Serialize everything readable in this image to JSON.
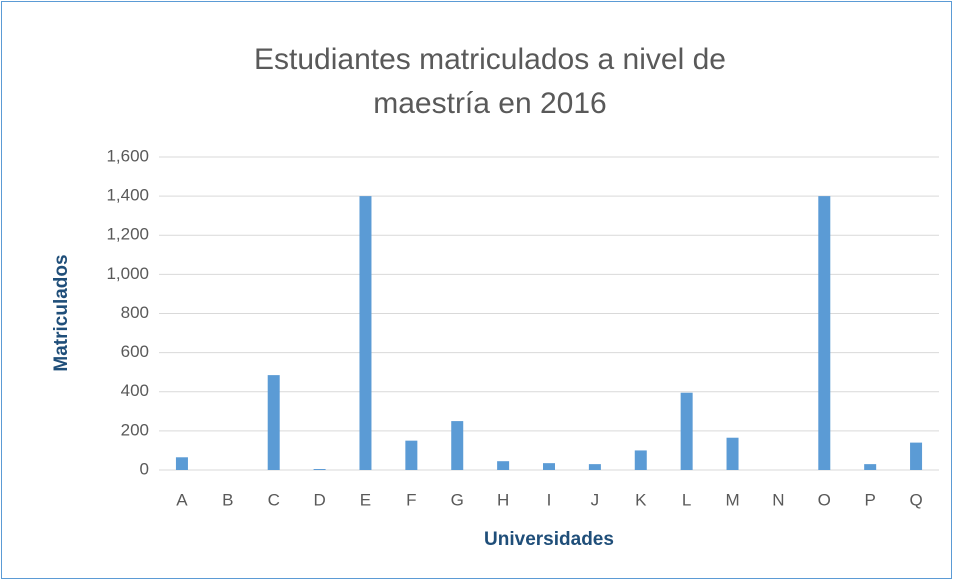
{
  "chart_data": {
    "type": "bar",
    "title": "Estudiantes matriculados a nivel de maestría en 2016",
    "x_label": "Universidades",
    "y_label": "Matriculados",
    "categories": [
      "A",
      "B",
      "C",
      "D",
      "E",
      "F",
      "G",
      "H",
      "I",
      "J",
      "K",
      "L",
      "M",
      "N",
      "O",
      "P",
      "Q"
    ],
    "values": [
      65,
      0,
      485,
      5,
      1400,
      150,
      250,
      45,
      35,
      30,
      100,
      395,
      165,
      0,
      1400,
      30,
      140
    ],
    "color": "#5b9bd5",
    "ylim": [
      0,
      1600
    ],
    "yticks": [
      0,
      200,
      400,
      600,
      800,
      {
        "value": 1000,
        "label": "1,000"
      },
      {
        "value": 1200,
        "label": "1,200"
      },
      {
        "value": 1400,
        "label": "1,400"
      },
      {
        "value": 1600,
        "label": "1,600"
      }
    ],
    "grid": true
  }
}
